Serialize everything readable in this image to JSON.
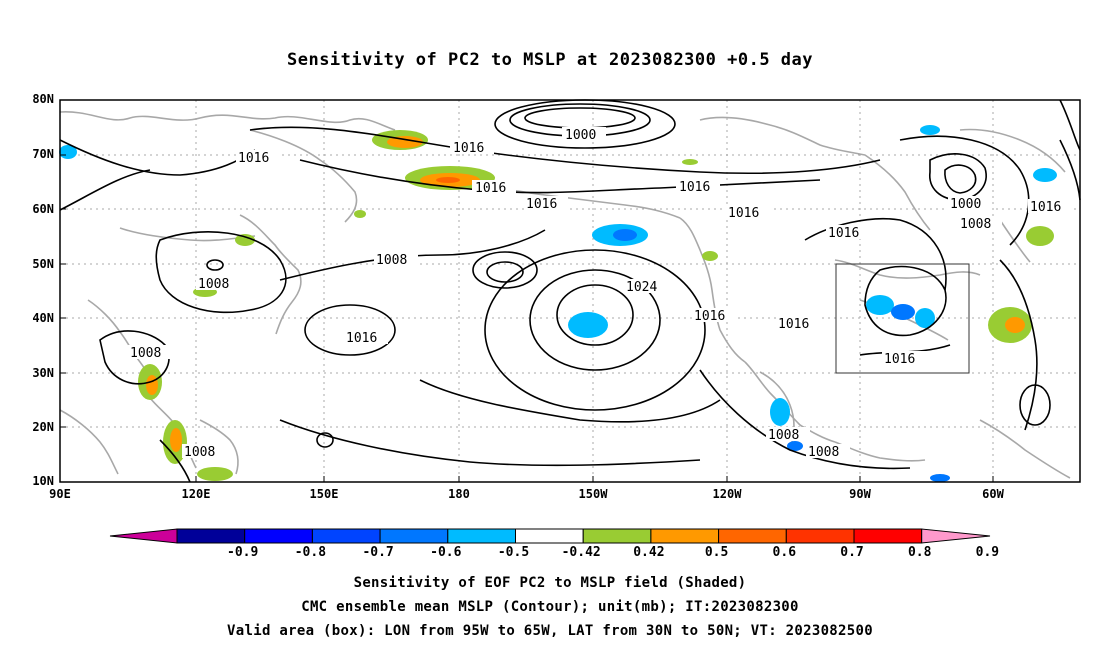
{
  "title": "Sensitivity of PC2 to MSLP at 2023082300 +0.5 day",
  "lat_labels": [
    "80N",
    "70N",
    "60N",
    "50N",
    "40N",
    "30N",
    "20N",
    "10N"
  ],
  "lon_labels": [
    "90E",
    "120E",
    "150E",
    "180",
    "150W",
    "120W",
    "90W",
    "60W"
  ],
  "contour_labels": {
    "c1000a": "1000",
    "c1016a": "1016",
    "c1016b": "1016",
    "c1016c": "1016",
    "c1016d": "1016",
    "c1016e": "1016",
    "c1016f": "1016",
    "c1016g": "1016",
    "c1016h": "1016",
    "c1016i": "1016",
    "c1016j": "1016",
    "c1016k": "1016",
    "c1024": "1024",
    "c1008a": "1008",
    "c1008b": "1008",
    "c1008c": "1008",
    "c1008d": "1008",
    "c1008e": "1008",
    "c1008f": "1008",
    "c1008g": "1008",
    "c1000b": "1000"
  },
  "colorbar": {
    "labels": [
      "-0.9",
      "-0.8",
      "-0.7",
      "-0.6",
      "-0.5",
      "-0.42",
      "0.42",
      "0.5",
      "0.6",
      "0.7",
      "0.8",
      "0.9"
    ],
    "colors": [
      "#000099",
      "#0000ff",
      "#0044ff",
      "#0077ff",
      "#00bbff",
      "#ffffff",
      "#99cc33",
      "#ff9900",
      "#ff6600",
      "#ff3300",
      "#ff0000"
    ],
    "low_extend_color": "#cc0099",
    "high_extend_color": "#ff99cc"
  },
  "captions": {
    "line1": "Sensitivity of EOF PC2 to MSLP field (Shaded)",
    "line2": "CMC ensemble mean MSLP (Contour); unit(mb); IT:2023082300",
    "line3": "Valid area (box): LON from 95W to 65W, LAT from 30N to 50N; VT: 2023082500"
  },
  "valid_box": {
    "lon_range": [
      "95W",
      "65W"
    ],
    "lat_range": [
      "30N",
      "50N"
    ]
  }
}
